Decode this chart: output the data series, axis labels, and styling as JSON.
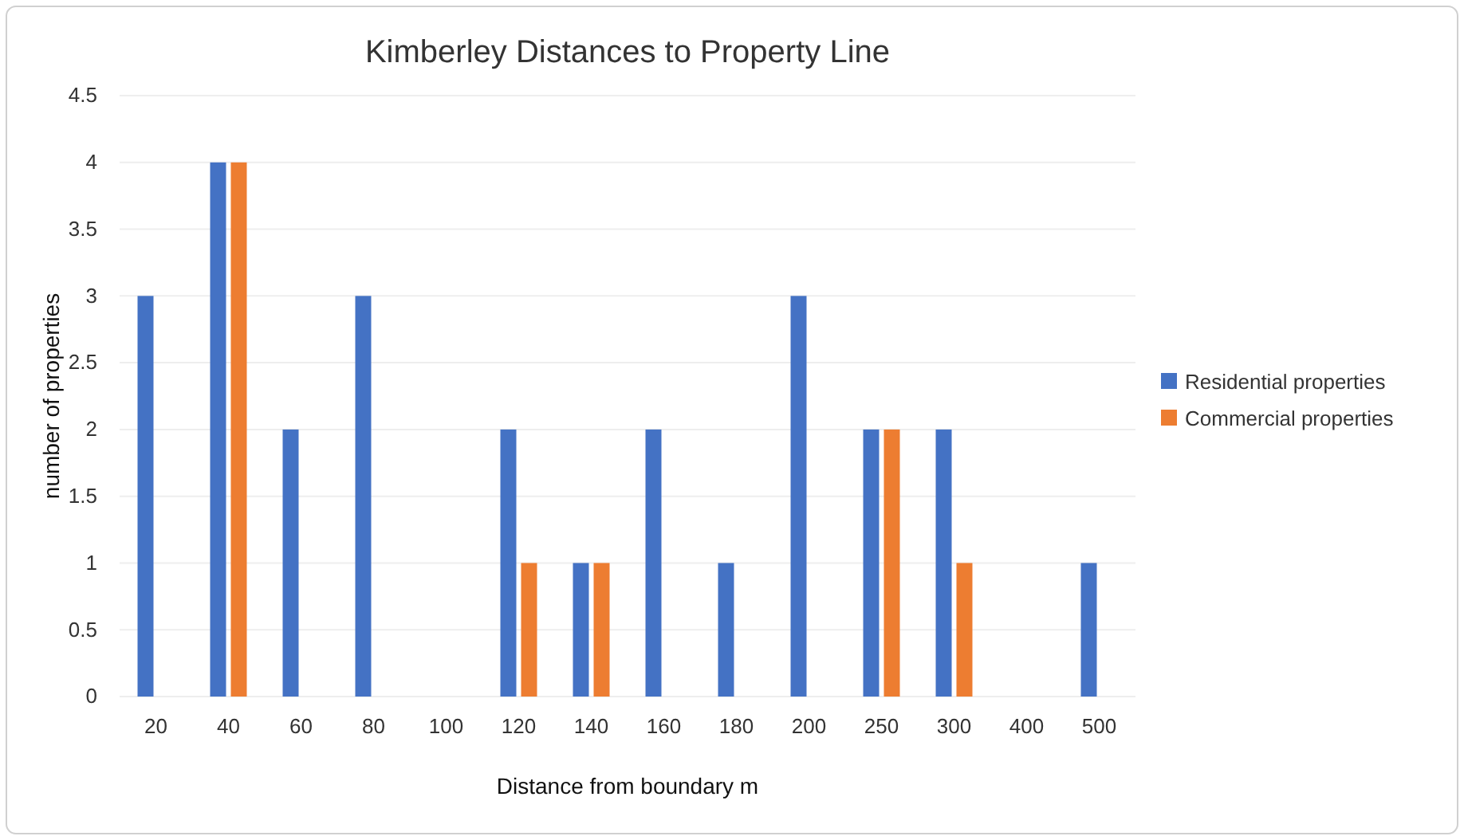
{
  "chart_data": {
    "type": "bar",
    "title": "Kimberley Distances to Property Line",
    "xlabel": "Distance from boundary m",
    "ylabel": "number of properties",
    "categories": [
      "20",
      "40",
      "60",
      "80",
      "100",
      "120",
      "140",
      "160",
      "180",
      "200",
      "250",
      "300",
      "400",
      "500"
    ],
    "series": [
      {
        "name": "Residential properties",
        "color": "#4472c4",
        "values": [
          3,
          4,
          2,
          3,
          0,
          2,
          1,
          2,
          1,
          3,
          2,
          2,
          0,
          1
        ]
      },
      {
        "name": "Commercial properties",
        "color": "#ed7d31",
        "values": [
          0,
          4,
          0,
          0,
          0,
          1,
          1,
          0,
          0,
          0,
          2,
          1,
          0,
          0
        ]
      }
    ],
    "ylim": [
      0,
      4.5
    ],
    "yticks": [
      0,
      0.5,
      1,
      1.5,
      2,
      2.5,
      3,
      3.5,
      4,
      4.5
    ],
    "grid": "y",
    "legend": "right"
  }
}
